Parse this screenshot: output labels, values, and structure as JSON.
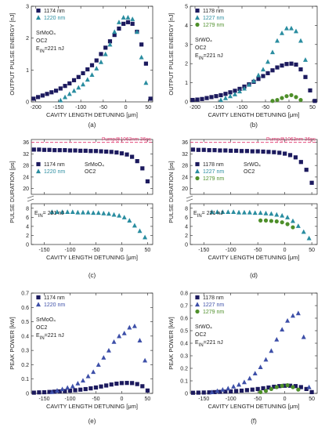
{
  "colors": {
    "s1174": "#1c1a5e",
    "s1220": "#2a8da0",
    "s1279": "#4e8f2a",
    "pump": "#e0336b",
    "axis": "#222222"
  },
  "chart_data": [
    {
      "id": "a",
      "type": "scatter",
      "caption": "(a)",
      "xlabel": "CAVITY LENGTH DETUNING [μm]",
      "ylabel": "OUTPUT PULSE ENERGY [nJ]",
      "xlim": [
        -210,
        60
      ],
      "ylim": [
        0,
        3
      ],
      "xticks": [
        -200,
        -150,
        -100,
        -50,
        0,
        50
      ],
      "yticks": [
        0,
        1,
        2,
        3
      ],
      "annotation": [
        "SrMoO₄",
        "OC2",
        "E_IN=221 nJ"
      ],
      "series": [
        {
          "name": "1174 nm",
          "marker": "square",
          "color": "#1c1a5e",
          "x": [
            -205,
            -195,
            -185,
            -175,
            -165,
            -155,
            -145,
            -135,
            -125,
            -115,
            -105,
            -95,
            -85,
            -75,
            -65,
            -55,
            -45,
            -35,
            -25,
            -15,
            -5,
            5,
            15,
            25,
            35,
            45,
            55
          ],
          "y": [
            0.1,
            0.15,
            0.2,
            0.25,
            0.3,
            0.35,
            0.42,
            0.5,
            0.58,
            0.68,
            0.78,
            0.9,
            1.02,
            1.15,
            1.3,
            1.5,
            1.7,
            1.9,
            2.1,
            2.3,
            2.45,
            2.5,
            2.45,
            2.2,
            1.8,
            1.2,
            0.1
          ]
        },
        {
          "name": "1220 nm",
          "marker": "triangle",
          "color": "#2a8da0",
          "x": [
            -145,
            -135,
            -125,
            -115,
            -105,
            -95,
            -85,
            -75,
            -65,
            -55,
            -45,
            -35,
            -25,
            -15,
            -5,
            5,
            15,
            25,
            35,
            45
          ],
          "y": [
            0.05,
            0.15,
            0.25,
            0.35,
            0.45,
            0.55,
            0.7,
            0.85,
            1.05,
            1.25,
            1.5,
            1.8,
            2.2,
            2.5,
            2.65,
            2.65,
            2.6,
            2.2,
            1.4,
            0.6
          ]
        }
      ]
    },
    {
      "id": "b",
      "type": "scatter",
      "caption": "(b)",
      "xlabel": "CAVITY LENGTH DETUNING [μm]",
      "ylabel": "OUTPUT PULSE ENERGY [nJ]",
      "xlim": [
        -210,
        60
      ],
      "ylim": [
        0,
        5
      ],
      "xticks": [
        -200,
        -150,
        -100,
        -50,
        0,
        50
      ],
      "yticks": [
        0,
        1,
        2,
        3,
        4,
        5
      ],
      "annotation": [
        "SrWO₄",
        "OC2",
        "E_IN=221 nJ"
      ],
      "series": [
        {
          "name": "1178 nm",
          "marker": "square",
          "color": "#1c1a5e",
          "x": [
            -205,
            -195,
            -185,
            -175,
            -165,
            -155,
            -145,
            -135,
            -125,
            -115,
            -105,
            -95,
            -85,
            -75,
            -65,
            -55,
            -45,
            -35,
            -25,
            -15,
            -5,
            5,
            15,
            25,
            35,
            45,
            55
          ],
          "y": [
            0.1,
            0.12,
            0.15,
            0.2,
            0.25,
            0.3,
            0.35,
            0.42,
            0.5,
            0.58,
            0.68,
            0.8,
            0.92,
            1.05,
            1.2,
            1.35,
            1.5,
            1.65,
            1.8,
            1.9,
            1.98,
            2.0,
            1.95,
            1.7,
            1.3,
            0.6,
            0.05
          ]
        },
        {
          "name": "1227 nm",
          "marker": "triangle",
          "color": "#2a8da0",
          "x": [
            -145,
            -135,
            -125,
            -115,
            -105,
            -95,
            -85,
            -75,
            -65,
            -55,
            -45,
            -35,
            -25,
            -15,
            -5,
            5,
            15,
            25,
            35
          ],
          "y": [
            0.1,
            0.2,
            0.3,
            0.4,
            0.55,
            0.7,
            0.9,
            1.1,
            1.4,
            1.7,
            2.1,
            2.6,
            3.2,
            3.6,
            3.85,
            3.85,
            3.7,
            3.2,
            2.2
          ]
        },
        {
          "name": "1279 nm",
          "marker": "circle",
          "color": "#4e8f2a",
          "x": [
            -35,
            -25,
            -15,
            -5,
            5,
            15,
            25
          ],
          "y": [
            0.05,
            0.1,
            0.2,
            0.3,
            0.35,
            0.25,
            0.1
          ]
        }
      ]
    },
    {
      "id": "c",
      "type": "scatter",
      "caption": "(c)",
      "xlabel": "CAVITY LENGTH DETUNING [μm]",
      "ylabel": "PULSE DURATION [ps]",
      "xlim": [
        -175,
        60
      ],
      "broken_axis": true,
      "upper": {
        "ylim": [
          18,
          37
        ],
        "yticks": [
          20,
          24,
          28,
          32,
          36
        ]
      },
      "lower": {
        "ylim": [
          0,
          9
        ],
        "yticks": [
          0,
          2,
          4,
          6,
          8
        ]
      },
      "xticks": [
        -150,
        -100,
        -50,
        0,
        50
      ],
      "pump_label": "Pump@1063nm 36ps",
      "pump_value": 36,
      "annotation": [
        "SrMoO₄",
        "OC2"
      ],
      "annotation2": "E_IN= 221 nJ",
      "series": [
        {
          "name": "1174 nm",
          "marker": "square",
          "color": "#1c1a5e",
          "panel": "upper",
          "x": [
            -170,
            -160,
            -150,
            -140,
            -130,
            -120,
            -110,
            -100,
            -90,
            -80,
            -70,
            -60,
            -50,
            -40,
            -30,
            -20,
            -10,
            0,
            10,
            20,
            30,
            40,
            50
          ],
          "y": [
            33.5,
            33.5,
            33.4,
            33.4,
            33.3,
            33.3,
            33.3,
            33.2,
            33.2,
            33.1,
            33.1,
            33,
            33,
            32.9,
            32.8,
            32.7,
            32.5,
            32.2,
            31.8,
            31,
            29.5,
            27,
            22.5
          ]
        },
        {
          "name": "1220 nm",
          "marker": "triangle",
          "color": "#2a8da0",
          "panel": "lower",
          "x": [
            -135,
            -125,
            -115,
            -105,
            -95,
            -85,
            -75,
            -65,
            -55,
            -45,
            -35,
            -25,
            -15,
            -5,
            5,
            15,
            25,
            35,
            45
          ],
          "y": [
            7.2,
            7.2,
            7.2,
            7.2,
            7.2,
            7.1,
            7.1,
            7.1,
            7.0,
            7.0,
            6.9,
            6.8,
            6.6,
            6.4,
            6.0,
            5.3,
            4.2,
            3.0,
            1.6
          ]
        }
      ]
    },
    {
      "id": "d",
      "type": "scatter",
      "caption": "(d)",
      "xlabel": "CAVITY LENGTH DETUNING [μm]",
      "ylabel": "PULSE DURATION [ps]",
      "xlim": [
        -175,
        60
      ],
      "broken_axis": true,
      "upper": {
        "ylim": [
          18,
          37
        ],
        "yticks": [
          20,
          24,
          28,
          32,
          36
        ]
      },
      "lower": {
        "ylim": [
          0,
          9
        ],
        "yticks": [
          0,
          2,
          4,
          6,
          8
        ]
      },
      "xticks": [
        -150,
        -100,
        -50,
        0,
        50
      ],
      "pump_label": "Pump@1063nm 36ps",
      "pump_value": 36,
      "annotation": [
        "SrWO₄",
        "OC2"
      ],
      "annotation2": "E_IN= 221 nJ",
      "series": [
        {
          "name": "1178 nm",
          "marker": "square",
          "color": "#1c1a5e",
          "panel": "upper",
          "x": [
            -170,
            -160,
            -150,
            -140,
            -130,
            -120,
            -110,
            -100,
            -90,
            -80,
            -70,
            -60,
            -50,
            -40,
            -30,
            -20,
            -10,
            0,
            10,
            20,
            30,
            40,
            50
          ],
          "y": [
            33.5,
            33.4,
            33.4,
            33.3,
            33.3,
            33.2,
            33.2,
            33.1,
            33.1,
            33,
            33,
            32.9,
            32.9,
            32.8,
            32.7,
            32.6,
            32.4,
            32.1,
            31.6,
            30.8,
            29.2,
            26.5,
            22
          ]
        },
        {
          "name": "1227 nm",
          "marker": "triangle",
          "color": "#2a8da0",
          "panel": "lower",
          "x": [
            -135,
            -125,
            -115,
            -105,
            -95,
            -85,
            -75,
            -65,
            -55,
            -45,
            -35,
            -25,
            -15,
            -5,
            5,
            15,
            25,
            35,
            45
          ],
          "y": [
            7.2,
            7.2,
            7.2,
            7.2,
            7.2,
            7.1,
            7.1,
            7.1,
            7.0,
            7.0,
            6.9,
            6.8,
            6.6,
            6.4,
            6.0,
            5.2,
            4.1,
            2.8,
            1.4
          ]
        },
        {
          "name": "1279 nm",
          "marker": "circle",
          "color": "#4e8f2a",
          "panel": "lower",
          "x": [
            -45,
            -35,
            -25,
            -15,
            -5,
            5,
            15
          ],
          "y": [
            5.3,
            5.3,
            5.2,
            5.1,
            4.9,
            4.5,
            3.8
          ]
        }
      ]
    },
    {
      "id": "e",
      "type": "scatter",
      "caption": "(e)",
      "xlabel": "CAVITY LENGTH DETUNING [μm]",
      "ylabel": "PEAK POWER [kW]",
      "xlim": [
        -175,
        60
      ],
      "ylim": [
        0,
        0.7
      ],
      "xticks": [
        -150,
        -100,
        -50,
        0,
        50
      ],
      "yticks": [
        0,
        0.1,
        0.2,
        0.3,
        0.4,
        0.5,
        0.6,
        0.7
      ],
      "annotation": [
        "SrMoO₄",
        "OC2",
        "E_IN=221 nJ"
      ],
      "series": [
        {
          "name": "1174 nm",
          "marker": "square",
          "color": "#1c1a5e",
          "x": [
            -170,
            -160,
            -150,
            -140,
            -130,
            -120,
            -110,
            -100,
            -90,
            -80,
            -70,
            -60,
            -50,
            -40,
            -30,
            -20,
            -10,
            0,
            10,
            20,
            30,
            40,
            50
          ],
          "y": [
            0.005,
            0.007,
            0.008,
            0.01,
            0.012,
            0.014,
            0.016,
            0.019,
            0.022,
            0.026,
            0.03,
            0.035,
            0.041,
            0.048,
            0.055,
            0.062,
            0.068,
            0.072,
            0.073,
            0.072,
            0.065,
            0.05,
            0.02
          ]
        },
        {
          "name": "1220 nm",
          "marker": "triangle",
          "color": "#3d4fa8",
          "x": [
            -135,
            -125,
            -115,
            -105,
            -95,
            -85,
            -75,
            -65,
            -55,
            -45,
            -35,
            -25,
            -15,
            -5,
            5,
            15,
            25,
            35,
            45
          ],
          "y": [
            0.01,
            0.02,
            0.03,
            0.04,
            0.05,
            0.07,
            0.09,
            0.12,
            0.15,
            0.2,
            0.25,
            0.3,
            0.36,
            0.4,
            0.42,
            0.46,
            0.47,
            0.37,
            0.23
          ]
        }
      ]
    },
    {
      "id": "f",
      "type": "scatter",
      "caption": "(f)",
      "xlabel": "CAVITY LENGTH DETUNING [μm]",
      "ylabel": "PEAK POWER [kW]",
      "xlim": [
        -175,
        60
      ],
      "ylim": [
        0,
        0.8
      ],
      "xticks": [
        -150,
        -100,
        -50,
        0,
        50
      ],
      "yticks": [
        0,
        0.1,
        0.2,
        0.3,
        0.4,
        0.5,
        0.6,
        0.7,
        0.8
      ],
      "annotation": [
        "SrWO₄",
        "OC2",
        "E_IN=221 nJ"
      ],
      "series": [
        {
          "name": "1178 nm",
          "marker": "square",
          "color": "#1c1a5e",
          "x": [
            -170,
            -160,
            -150,
            -140,
            -130,
            -120,
            -110,
            -100,
            -90,
            -80,
            -70,
            -60,
            -50,
            -40,
            -30,
            -20,
            -10,
            0,
            10,
            20,
            30,
            40,
            50
          ],
          "y": [
            0.005,
            0.006,
            0.007,
            0.008,
            0.01,
            0.012,
            0.014,
            0.016,
            0.019,
            0.022,
            0.026,
            0.03,
            0.035,
            0.041,
            0.047,
            0.053,
            0.058,
            0.061,
            0.061,
            0.058,
            0.05,
            0.035,
            0.01
          ]
        },
        {
          "name": "1227 nm",
          "marker": "triangle",
          "color": "#3d4fa8",
          "x": [
            -135,
            -125,
            -115,
            -105,
            -95,
            -85,
            -75,
            -65,
            -55,
            -45,
            -35,
            -25,
            -15,
            -5,
            5,
            15,
            25,
            35,
            45
          ],
          "y": [
            0.01,
            0.02,
            0.03,
            0.04,
            0.055,
            0.07,
            0.09,
            0.12,
            0.16,
            0.21,
            0.27,
            0.34,
            0.43,
            0.51,
            0.58,
            0.62,
            0.64,
            0.45,
            0.05
          ]
        },
        {
          "name": "1279 nm",
          "marker": "circle",
          "color": "#4e8f2a",
          "x": [
            -45,
            -35,
            -25,
            -15,
            -5,
            5,
            15,
            25
          ],
          "y": [
            0.01,
            0.02,
            0.035,
            0.05,
            0.06,
            0.065,
            0.05,
            0.03
          ]
        }
      ]
    }
  ]
}
